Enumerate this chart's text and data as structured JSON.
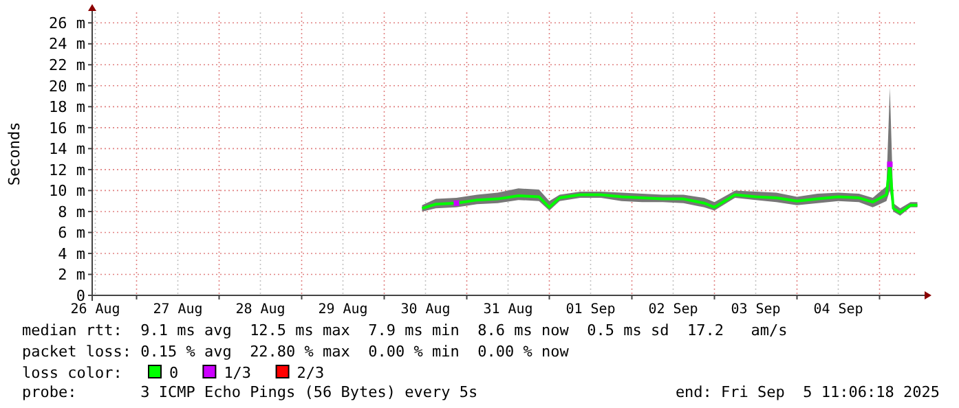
{
  "chart_data": {
    "type": "line",
    "ylabel": "Seconds",
    "legend_title": "loss color:",
    "legend": "bottom",
    "grid": true,
    "line_style": "solid",
    "xlim": [
      "2025-08-26T11:06",
      "2025-09-05T11:06"
    ],
    "xticks": [
      {
        "value": "2025-08-26T12:00",
        "label": "26 Aug"
      },
      {
        "value": "2025-08-27T00:00",
        "label": null
      },
      {
        "value": "2025-08-27T12:00",
        "label": "27 Aug"
      },
      {
        "value": "2025-08-28T00:00",
        "label": null
      },
      {
        "value": "2025-08-28T12:00",
        "label": "28 Aug"
      },
      {
        "value": "2025-08-29T00:00",
        "label": null
      },
      {
        "value": "2025-08-29T12:00",
        "label": "29 Aug"
      },
      {
        "value": "2025-08-30T00:00",
        "label": null
      },
      {
        "value": "2025-08-30T12:00",
        "label": "30 Aug"
      },
      {
        "value": "2025-08-31T00:00",
        "label": null
      },
      {
        "value": "2025-08-31T12:00",
        "label": "31 Aug"
      },
      {
        "value": "2025-09-01T00:00",
        "label": null
      },
      {
        "value": "2025-09-01T12:00",
        "label": "01 Sep"
      },
      {
        "value": "2025-09-02T00:00",
        "label": null
      },
      {
        "value": "2025-09-02T12:00",
        "label": "02 Sep"
      },
      {
        "value": "2025-09-03T00:00",
        "label": null
      },
      {
        "value": "2025-09-03T12:00",
        "label": "03 Sep"
      },
      {
        "value": "2025-09-04T00:00",
        "label": null
      },
      {
        "value": "2025-09-04T12:00",
        "label": "04 Sep"
      },
      {
        "value": "2025-09-05T00:00",
        "label": null
      }
    ],
    "ylim": [
      0,
      27
    ],
    "yticks": [
      {
        "value": 0,
        "label": "0"
      },
      {
        "value": 2,
        "label": "2 m"
      },
      {
        "value": 4,
        "label": "4 m"
      },
      {
        "value": 6,
        "label": "6 m"
      },
      {
        "value": 8,
        "label": "8 m"
      },
      {
        "value": 10,
        "label": "10 m"
      },
      {
        "value": 12,
        "label": "12 m"
      },
      {
        "value": 14,
        "label": "14 m"
      },
      {
        "value": 16,
        "label": "16 m"
      },
      {
        "value": 18,
        "label": "18 m"
      },
      {
        "value": 20,
        "label": "20 m"
      },
      {
        "value": 22,
        "label": "22 m"
      },
      {
        "value": 24,
        "label": "24 m"
      },
      {
        "value": 26,
        "label": "26 m"
      }
    ],
    "series": [
      {
        "name": "0",
        "color": "#00ff00",
        "x": [
          "2025-08-30T11:00",
          "2025-08-30T15:00",
          "2025-08-30T21:00",
          "2025-08-31T03:00",
          "2025-08-31T09:00",
          "2025-08-31T15:00",
          "2025-08-31T21:00",
          "2025-09-01T00:00",
          "2025-09-01T03:00",
          "2025-09-01T09:00",
          "2025-09-01T15:00",
          "2025-09-01T21:00",
          "2025-09-02T03:00",
          "2025-09-02T09:00",
          "2025-09-02T15:00",
          "2025-09-02T21:00",
          "2025-09-03T00:00",
          "2025-09-03T06:00",
          "2025-09-03T12:00",
          "2025-09-03T18:00",
          "2025-09-04T00:00",
          "2025-09-04T06:00",
          "2025-09-04T12:00",
          "2025-09-04T18:00",
          "2025-09-04T22:00",
          "2025-09-05T02:00",
          "2025-09-05T03:00",
          "2025-09-05T04:00",
          "2025-09-05T06:00",
          "2025-09-05T09:00",
          "2025-09-05T11:00"
        ],
        "values": [
          8.3,
          8.7,
          8.8,
          9.1,
          9.2,
          9.5,
          9.4,
          8.4,
          9.3,
          9.6,
          9.6,
          9.4,
          9.3,
          9.2,
          9.2,
          8.8,
          8.4,
          9.6,
          9.4,
          9.3,
          9.0,
          9.2,
          9.4,
          9.3,
          8.9,
          9.6,
          12.5,
          8.3,
          7.9,
          8.6,
          8.6
        ],
        "lower": [
          8.0,
          8.3,
          8.4,
          8.7,
          8.8,
          9.1,
          9.0,
          8.1,
          9.0,
          9.3,
          9.3,
          9.0,
          8.9,
          8.9,
          8.8,
          8.4,
          8.1,
          9.3,
          9.1,
          8.9,
          8.6,
          8.8,
          9.0,
          8.9,
          8.4,
          9.0,
          10.0,
          8.0,
          7.6,
          8.4,
          8.4
        ],
        "upper": [
          8.6,
          9.2,
          9.3,
          9.6,
          9.8,
          10.2,
          10.1,
          9.0,
          9.6,
          9.9,
          9.9,
          9.8,
          9.7,
          9.6,
          9.6,
          9.3,
          8.9,
          10.0,
          9.9,
          9.8,
          9.4,
          9.7,
          9.8,
          9.7,
          9.3,
          10.4,
          19.8,
          8.8,
          8.3,
          8.9,
          8.9
        ]
      },
      {
        "name": "1/3",
        "type": "scatter",
        "marker": "square",
        "color": "#cc00ff",
        "x": [
          "2025-08-30T21:00",
          "2025-09-05T03:00"
        ],
        "values": [
          8.8,
          12.5
        ]
      },
      {
        "name": "2/3",
        "type": "scatter",
        "marker": "square",
        "color": "#ff0000"
      }
    ],
    "annotations": [
      "median rtt:  9.1 ms avg  12.5 ms max  7.9 ms min  8.6 ms now  0.5 ms sd  17.2   am/s",
      "packet loss: 0.15 % avg  22.80 % max  0.00 % min  0.00 % now",
      "probe:       3 ICMP Echo Pings (56 Bytes) every 5s",
      "end: Fri Sep  5 11:06:18 2025"
    ]
  }
}
